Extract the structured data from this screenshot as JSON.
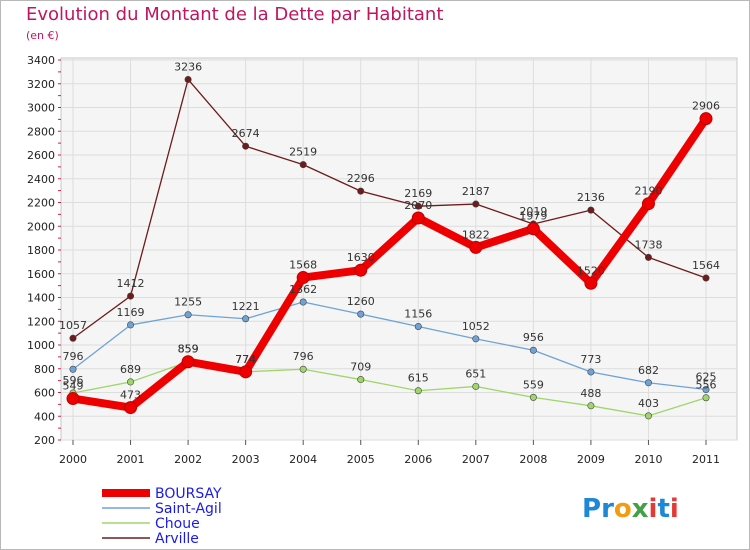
{
  "page": {
    "title": "Evolution du Montant de la Dette par Habitant",
    "unit": "(en €)"
  },
  "brand": {
    "letters": [
      {
        "ch": "P",
        "color": "#1e88d6"
      },
      {
        "ch": "r",
        "color": "#1e88d6"
      },
      {
        "ch": "o",
        "color": "#f39c12"
      },
      {
        "ch": "x",
        "color": "#43a047"
      },
      {
        "ch": "i",
        "color": "#e53935"
      },
      {
        "ch": "t",
        "color": "#1e88d6"
      },
      {
        "ch": "i",
        "color": "#e53935"
      }
    ]
  },
  "chart_data": {
    "type": "line",
    "title": "Evolution du Montant de la Dette par Habitant",
    "xlabel": "",
    "ylabel": "(en €)",
    "x": [
      "2000",
      "2001",
      "2002",
      "2003",
      "2004",
      "2005",
      "2006",
      "2007",
      "2008",
      "2009",
      "2010",
      "2011"
    ],
    "ylim": [
      200,
      3400
    ],
    "yticks": [
      200,
      400,
      600,
      800,
      1000,
      1200,
      1400,
      1600,
      1800,
      2000,
      2200,
      2400,
      2600,
      2800,
      3000,
      3200,
      3400
    ],
    "grid": true,
    "legend_position": "bottom-left",
    "series": [
      {
        "name": "Arville",
        "color": "#6e1b1b",
        "values": [
          1057,
          1412,
          3236,
          2674,
          2519,
          2296,
          2169,
          2187,
          2019,
          2136,
          1738,
          1564
        ]
      },
      {
        "name": "Saint-Agil",
        "color": "#6fa3d6",
        "values": [
          796,
          1169,
          1255,
          1221,
          1362,
          1260,
          1156,
          1052,
          956,
          773,
          682,
          625
        ]
      },
      {
        "name": "Choue",
        "color": "#9fd66b",
        "values": [
          596,
          689,
          859,
          774,
          796,
          709,
          615,
          651,
          559,
          488,
          403,
          556
        ]
      },
      {
        "name": "BOURSAY",
        "color": "#ee0000",
        "values": [
          549,
          473,
          859,
          774,
          1568,
          1630,
          2070,
          1822,
          1979,
          1520,
          2190,
          2906
        ]
      }
    ],
    "legend_order": [
      "BOURSAY",
      "Saint-Agil",
      "Choue",
      "Arville"
    ]
  }
}
